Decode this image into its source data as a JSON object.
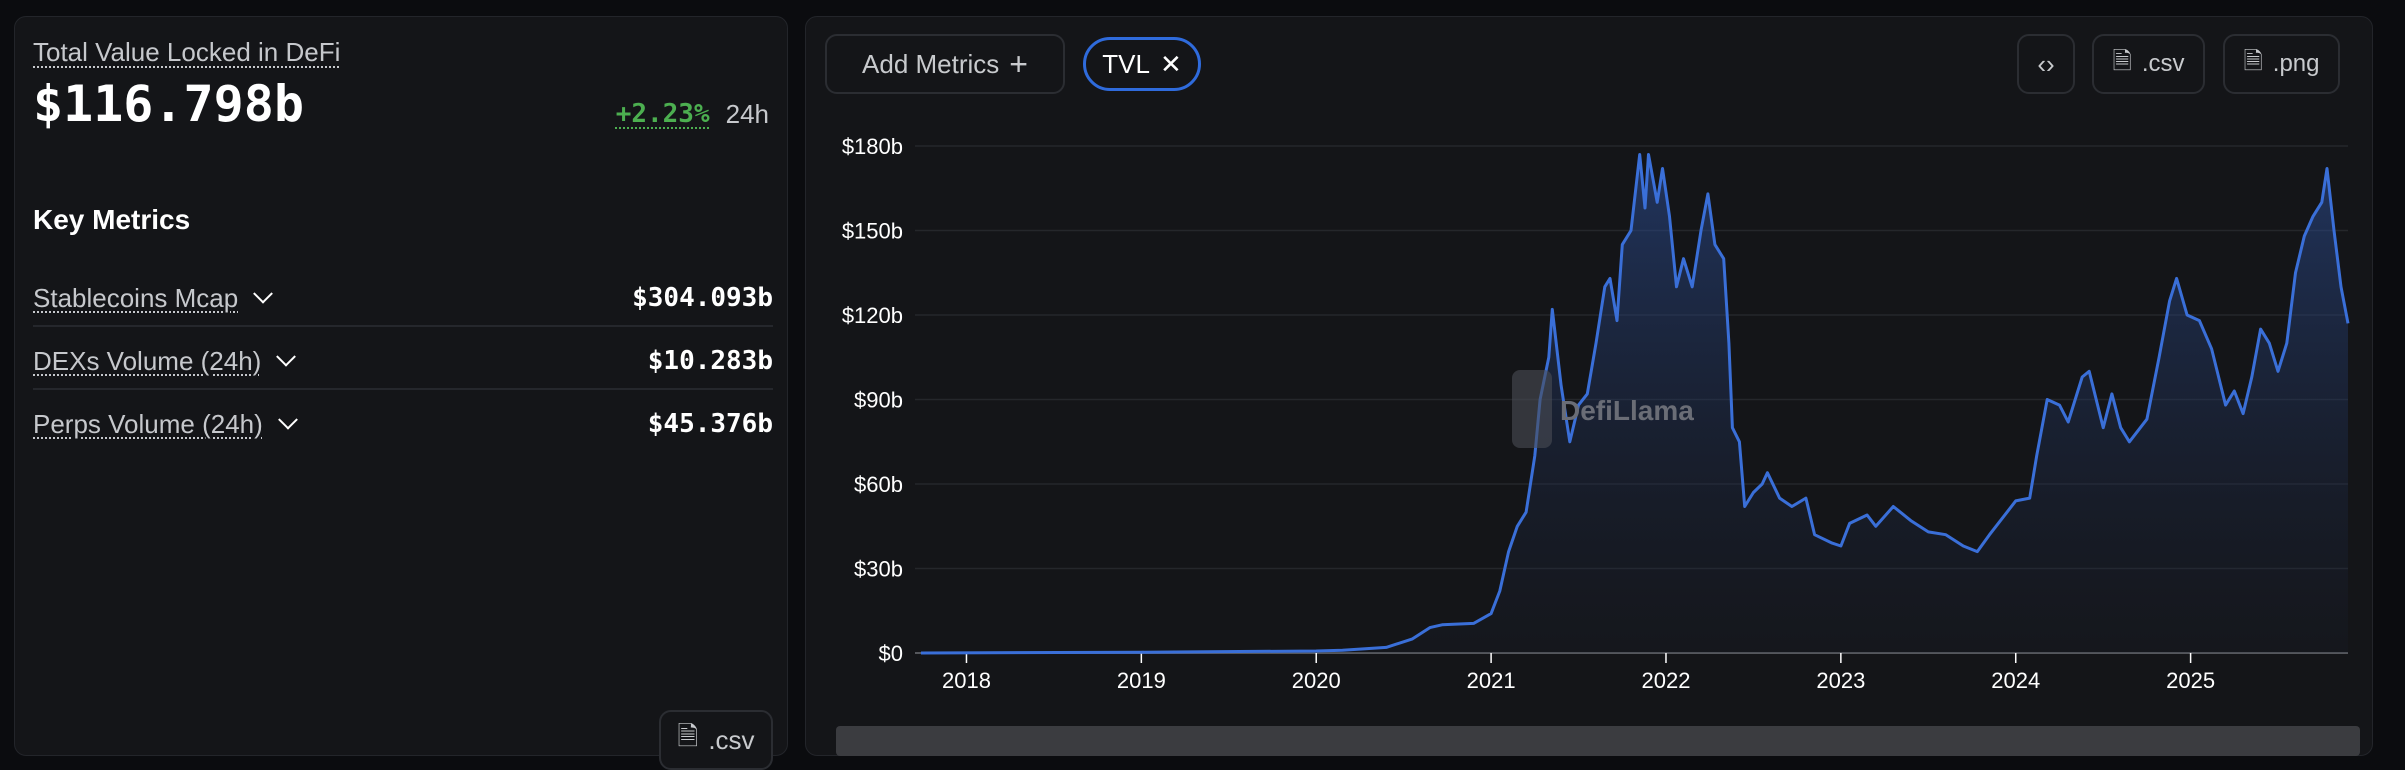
{
  "summary": {
    "title": "Total Value Locked in DeFi",
    "value": "$116.798b",
    "change": "+2.23%",
    "period": "24h",
    "change_color": "#4caf50"
  },
  "key_metrics": {
    "heading": "Key Metrics",
    "items": [
      {
        "label": "Stablecoins Mcap",
        "value": "$304.093b"
      },
      {
        "label": "DEXs Volume (24h)",
        "value": "$10.283b"
      },
      {
        "label": "Perps Volume (24h)",
        "value": "$45.376b"
      }
    ],
    "csv_label": ".csv"
  },
  "toolbar": {
    "add_metrics": "Add Metrics",
    "active_metric": "TVL",
    "embed_icon": "code-icon",
    "csv_label": ".csv",
    "png_label": ".png",
    "accent": "#2f6bdc"
  },
  "watermark": "DefiLlama",
  "chart_data": {
    "type": "area",
    "series": [
      {
        "name": "TVL",
        "color": "#3a6fd8",
        "x": [
          2017.74,
          2019.0,
          2020.0,
          2020.15,
          2020.4,
          2020.55,
          2020.65,
          2020.72,
          2020.9,
          2021.0,
          2021.05,
          2021.1,
          2021.15,
          2021.2,
          2021.25,
          2021.28,
          2021.33,
          2021.35,
          2021.4,
          2021.45,
          2021.5,
          2021.55,
          2021.6,
          2021.65,
          2021.68,
          2021.72,
          2021.75,
          2021.8,
          2021.85,
          2021.88,
          2021.9,
          2021.95,
          2021.98,
          2022.02,
          2022.06,
          2022.1,
          2022.15,
          2022.2,
          2022.24,
          2022.28,
          2022.33,
          2022.36,
          2022.38,
          2022.42,
          2022.45,
          2022.5,
          2022.55,
          2022.58,
          2022.65,
          2022.72,
          2022.8,
          2022.85,
          2022.95,
          2023.0,
          2023.05,
          2023.15,
          2023.2,
          2023.3,
          2023.4,
          2023.5,
          2023.6,
          2023.7,
          2023.78,
          2023.85,
          2023.95,
          2024.0,
          2024.08,
          2024.12,
          2024.18,
          2024.25,
          2024.3,
          2024.38,
          2024.42,
          2024.5,
          2024.55,
          2024.6,
          2024.65,
          2024.75,
          2024.82,
          2024.88,
          2024.92,
          2024.98,
          2025.05,
          2025.12,
          2025.2,
          2025.25,
          2025.3,
          2025.35,
          2025.4,
          2025.45,
          2025.5,
          2025.55,
          2025.6,
          2025.65,
          2025.7,
          2025.75,
          2025.78,
          2025.82,
          2025.86,
          2025.9
        ],
        "values": [
          0,
          0.3,
          0.7,
          1,
          2,
          5,
          9,
          10,
          10.5,
          14,
          22,
          36,
          45,
          50,
          70,
          90,
          105,
          122,
          95,
          75,
          88,
          92,
          110,
          130,
          133,
          118,
          145,
          150,
          177,
          158,
          177,
          160,
          172,
          155,
          130,
          140,
          130,
          150,
          163,
          145,
          140,
          110,
          80,
          75,
          52,
          57,
          60,
          64,
          55,
          52,
          55,
          42,
          39,
          38,
          46,
          49,
          45,
          52,
          47,
          43,
          42,
          38,
          36,
          42,
          50,
          54,
          55,
          70,
          90,
          88,
          82,
          98,
          100,
          80,
          92,
          80,
          75,
          83,
          105,
          125,
          133,
          120,
          118,
          108,
          88,
          93,
          85,
          98,
          115,
          110,
          100,
          110,
          135,
          148,
          155,
          160,
          172,
          150,
          130,
          117
        ]
      }
    ],
    "y_ticks": [
      "$0",
      "$30b",
      "$60b",
      "$90b",
      "$120b",
      "$150b",
      "$180b"
    ],
    "y_tick_values": [
      0,
      30,
      60,
      90,
      120,
      150,
      180
    ],
    "x_ticks": [
      "2018",
      "2019",
      "2020",
      "2021",
      "2022",
      "2023",
      "2024",
      "2025"
    ],
    "xlim": [
      2017.74,
      2025.9
    ],
    "ylim": [
      0,
      180
    ],
    "grid": "horizontal",
    "legend": "none"
  }
}
